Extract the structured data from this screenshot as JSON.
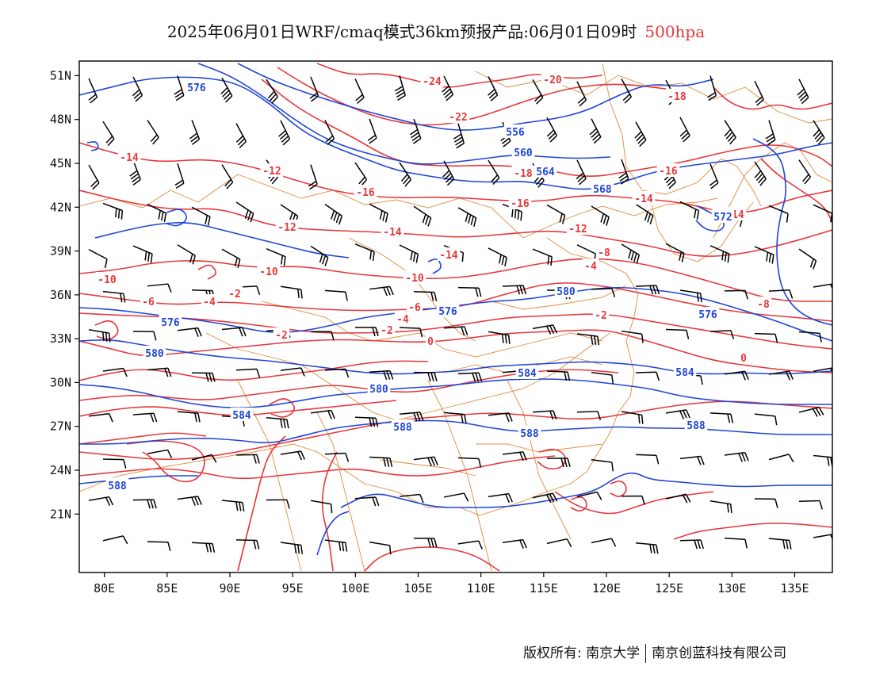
{
  "header": {
    "title": "2025年06月01日WRF/cmaq模式36km预报产品:06月01日09时",
    "level": "500hpa"
  },
  "map": {
    "lon_range": [
      78,
      138
    ],
    "lat_range": [
      17,
      52
    ],
    "lon_ticks": [
      "80E",
      "85E",
      "90E",
      "95E",
      "100E",
      "105E",
      "110E",
      "115E",
      "120E",
      "125E",
      "130E",
      "135E"
    ],
    "lat_ticks": [
      "51N",
      "48N",
      "45N",
      "42N",
      "39N",
      "36N",
      "33N",
      "30N",
      "27N",
      "24N",
      "21N"
    ],
    "colors": {
      "temperature": "#e8363a",
      "geopotential": "#1f45d6",
      "boundaries": "#e08b3a",
      "wind": "#000000"
    },
    "geopotential_labels": [
      "576",
      "556",
      "560",
      "564",
      "568",
      "572",
      "576",
      "576",
      "576",
      "580",
      "580",
      "580",
      "584",
      "584",
      "584",
      "588",
      "588",
      "588",
      "588"
    ],
    "temperature_labels": [
      "-24",
      "-22",
      "-20",
      "-18",
      "-18",
      "-16",
      "-16",
      "-16",
      "-14",
      "-14",
      "-14",
      "-14",
      "-14",
      "-12",
      "-12",
      "-12",
      "-10",
      "-10",
      "-10",
      "-8",
      "-8",
      "-6",
      "-6",
      "-4",
      "-4",
      "-4",
      "-2",
      "-2",
      "-2",
      "-2",
      "0",
      "0"
    ]
  },
  "footer": {
    "left": "版权所有: 南京大学",
    "right": "南京创蓝科技有限公司"
  }
}
